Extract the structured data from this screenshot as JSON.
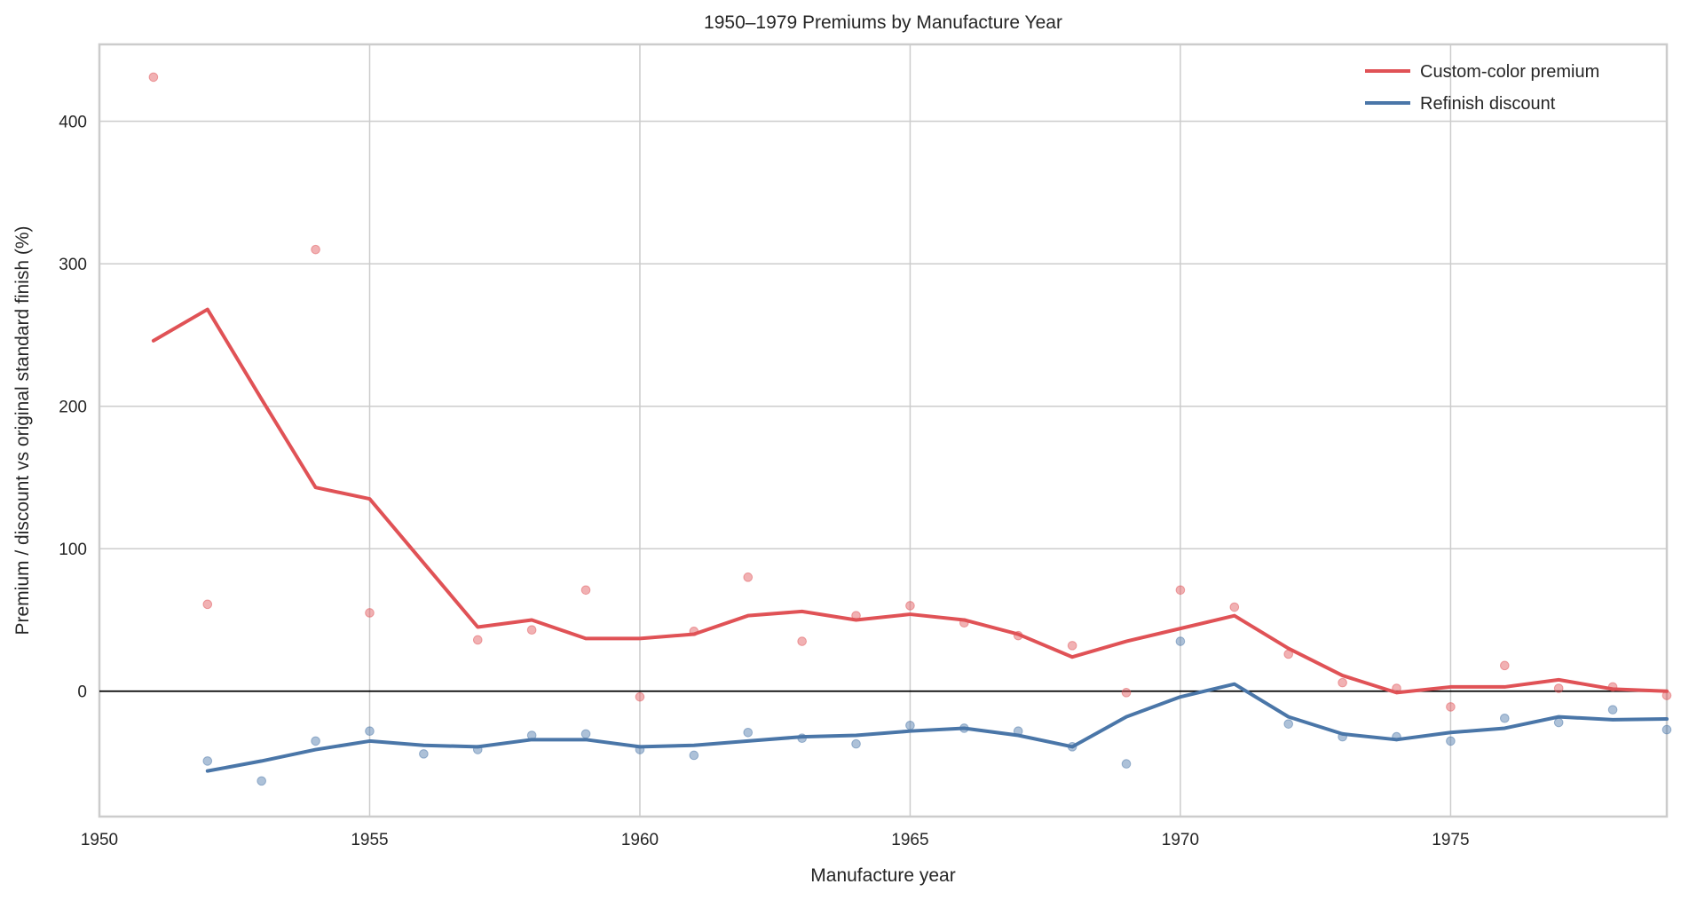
{
  "chart_data": {
    "type": "line",
    "title": "1950–1979 Premiums by Manufacture Year",
    "xlabel": "Manufacture year",
    "ylabel": "Premium / discount vs original standard finish (%)",
    "xlim": [
      1950,
      1979
    ],
    "ylim": [
      -88,
      454
    ],
    "xticks": [
      1950,
      1955,
      1960,
      1965,
      1970,
      1975
    ],
    "yticks": [
      0,
      100,
      200,
      300,
      400
    ],
    "grid": true,
    "reference_line_y": 0,
    "legend_placement": "top-right",
    "series": [
      {
        "name": "Custom-color premium",
        "color": "#e05256",
        "line": {
          "x": [
            1951,
            1952,
            1953,
            1954,
            1955,
            1956,
            1957,
            1958,
            1959,
            1960,
            1961,
            1962,
            1963,
            1964,
            1965,
            1966,
            1967,
            1968,
            1969,
            1970,
            1971,
            1972,
            1973,
            1974,
            1975,
            1976,
            1977,
            1978,
            1979
          ],
          "y": [
            246,
            268,
            205,
            143,
            135,
            90,
            45,
            50,
            37,
            37,
            40,
            53,
            56,
            50,
            54,
            50,
            40,
            24,
            35,
            44,
            53,
            30,
            11,
            -1,
            3,
            3,
            8,
            1.5,
            0
          ]
        },
        "points": {
          "x": [
            1951,
            1952,
            1954,
            1955,
            1957,
            1958,
            1959,
            1960,
            1961,
            1962,
            1963,
            1964,
            1965,
            1966,
            1967,
            1968,
            1969,
            1970,
            1971,
            1972,
            1973,
            1974,
            1975,
            1976,
            1977,
            1978,
            1979
          ],
          "y": [
            431,
            61,
            310,
            55,
            36,
            43,
            71,
            -4,
            42,
            80,
            35,
            53,
            60,
            48,
            39,
            32,
            -1,
            71,
            59,
            26,
            6,
            2,
            -11,
            18,
            2,
            3,
            -3
          ]
        }
      },
      {
        "name": "Refinish discount",
        "color": "#4a76a8",
        "line": {
          "x": [
            1952,
            1953,
            1954,
            1955,
            1956,
            1957,
            1958,
            1959,
            1960,
            1961,
            1962,
            1963,
            1964,
            1965,
            1966,
            1967,
            1968,
            1969,
            1970,
            1971,
            1972,
            1973,
            1974,
            1975,
            1976,
            1977,
            1978,
            1979
          ],
          "y": [
            -56,
            -49,
            -41,
            -35,
            -38,
            -39,
            -34,
            -34,
            -39,
            -38,
            -35,
            -32,
            -31,
            -28,
            -26,
            -31,
            -39,
            -18,
            -4,
            5,
            -18,
            -30,
            -34,
            -29,
            -26,
            -18,
            -20,
            -19.5
          ]
        },
        "points": {
          "x": [
            1952,
            1953,
            1954,
            1955,
            1956,
            1957,
            1958,
            1959,
            1960,
            1961,
            1962,
            1963,
            1964,
            1965,
            1966,
            1967,
            1968,
            1969,
            1970,
            1972,
            1973,
            1974,
            1975,
            1976,
            1977,
            1978,
            1979
          ],
          "y": [
            -49,
            -63,
            -35,
            -28,
            -44,
            -41,
            -31,
            -30,
            -41,
            -45,
            -29,
            -33,
            -37,
            -24,
            -26,
            -28,
            -39,
            -51,
            35,
            -23,
            -32,
            -32,
            -35,
            -19,
            -22,
            -13,
            -27
          ]
        }
      }
    ]
  }
}
